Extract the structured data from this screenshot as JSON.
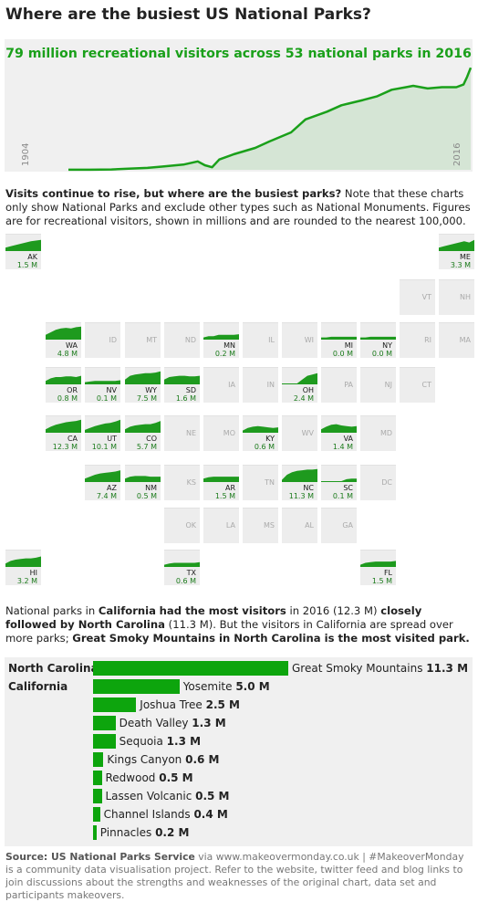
{
  "title": "Where are the busiest US National Parks?",
  "top": {
    "headline": "79 million recreational visitors across 53 national parks in 2016",
    "start_year": "1904",
    "end_year": "2016"
  },
  "intro": {
    "bold": "Visits continue to rise, but where are the busiest parks?",
    "rest": " Note that these charts only show National Parks and exclude other types such as National Monuments. Figures are for recreational visitors, shown in millions and are rounded to the nearest 100,000."
  },
  "para2": {
    "t1": "National parks in ",
    "b1": "California",
    "t2": " ",
    "b2": "had the most visitors",
    "t3": " in 2016 (12.3 M) ",
    "b3": "closely followed by North Carolina",
    "t4": " (11.3 M). But the visitors in California are spread over more parks; ",
    "b4": "Great Smoky Mountains in North Carolina is the most visited park."
  },
  "source": {
    "label": "Source: ",
    "org": "US National Parks Service",
    "rest": " via www.makeovermonday.co.uk | #MakeoverMonday is a community data visualisation project. Refer to the website, twitter feed and blog links to join discussions about the strengths and weaknesses of the original chart, data set and participants makeovers."
  },
  "colors": {
    "accent": "#1aa01a",
    "bar": "#0da50d",
    "panel": "#f0f0f0",
    "tile": "#ededed",
    "muted": "#aaaaaa"
  },
  "chart_data": [
    {
      "type": "area",
      "title": "79 million recreational visitors across 53 national parks in 2016",
      "x": [
        1904,
        1910,
        1916,
        1920,
        1926,
        1930,
        1936,
        1940,
        1942,
        1944,
        1946,
        1950,
        1956,
        1960,
        1966,
        1970,
        1976,
        1980,
        1986,
        1990,
        1994,
        1998,
        2000,
        2004,
        2008,
        2012,
        2014,
        2015,
        2016
      ],
      "y": [
        0.1,
        0.1,
        0.3,
        0.8,
        1.5,
        2.5,
        4.0,
        6.5,
        3.5,
        2.0,
        8.0,
        12.0,
        17.0,
        22.0,
        29.0,
        39.0,
        45.0,
        50.0,
        54.0,
        57.0,
        62.0,
        64.0,
        65.0,
        63.0,
        64.0,
        64.0,
        66.0,
        72.0,
        79.0
      ],
      "xlabel": "",
      "ylabel": "",
      "xlim": [
        1904,
        2016
      ],
      "ylim": [
        0,
        82
      ]
    },
    {
      "type": "tile-map",
      "states": [
        {
          "abbr": "AK",
          "value": "1.5 M",
          "col": 0,
          "row": 0,
          "spark": [
            0.2,
            0.3,
            0.4,
            0.5,
            0.6,
            0.7,
            0.75,
            0.8
          ]
        },
        {
          "abbr": "ME",
          "value": "3.3 M",
          "col": 11,
          "row": 0,
          "spark": [
            0.2,
            0.3,
            0.4,
            0.5,
            0.6,
            0.7,
            0.6,
            0.8
          ]
        },
        {
          "abbr": "VT",
          "value": "",
          "col": 10,
          "row": 1
        },
        {
          "abbr": "NH",
          "value": "",
          "col": 11,
          "row": 1
        },
        {
          "abbr": "WA",
          "value": "4.8 M",
          "col": 1,
          "row": 2,
          "spark": [
            0.3,
            0.5,
            0.7,
            0.8,
            0.85,
            0.8,
            0.9,
            0.95
          ]
        },
        {
          "abbr": "ID",
          "value": "",
          "col": 2,
          "row": 2
        },
        {
          "abbr": "MT",
          "value": "",
          "col": 3,
          "row": 2
        },
        {
          "abbr": "ND",
          "value": "",
          "col": 4,
          "row": 2
        },
        {
          "abbr": "MN",
          "value": "0.2 M",
          "col": 5,
          "row": 2,
          "spark": [
            0.1,
            0.2,
            0.2,
            0.3,
            0.3,
            0.3,
            0.3,
            0.35
          ]
        },
        {
          "abbr": "IL",
          "value": "",
          "col": 6,
          "row": 2
        },
        {
          "abbr": "WI",
          "value": "",
          "col": 7,
          "row": 2
        },
        {
          "abbr": "MI",
          "value": "0.0 M",
          "col": 8,
          "row": 2,
          "spark": [
            0.1,
            0.1,
            0.15,
            0.15,
            0.15,
            0.15,
            0.15,
            0.15
          ]
        },
        {
          "abbr": "NY",
          "value": "0.0 M",
          "col": 9,
          "row": 2,
          "spark": [
            0.1,
            0.1,
            0.15,
            0.15,
            0.15,
            0.15,
            0.15,
            0.15
          ]
        },
        {
          "abbr": "RI",
          "value": "",
          "col": 10,
          "row": 2
        },
        {
          "abbr": "MA",
          "value": "",
          "col": 11,
          "row": 2
        },
        {
          "abbr": "OR",
          "value": "0.8 M",
          "col": 1,
          "row": 3,
          "spark": [
            0.2,
            0.4,
            0.5,
            0.5,
            0.55,
            0.55,
            0.5,
            0.6
          ]
        },
        {
          "abbr": "NV",
          "value": "0.1 M",
          "col": 2,
          "row": 3,
          "spark": [
            0.1,
            0.15,
            0.2,
            0.2,
            0.2,
            0.2,
            0.2,
            0.25
          ]
        },
        {
          "abbr": "WY",
          "value": "7.5 M",
          "col": 3,
          "row": 3,
          "spark": [
            0.3,
            0.6,
            0.7,
            0.75,
            0.8,
            0.8,
            0.85,
            0.95
          ]
        },
        {
          "abbr": "SD",
          "value": "1.6 M",
          "col": 4,
          "row": 3,
          "spark": [
            0.3,
            0.5,
            0.55,
            0.6,
            0.6,
            0.55,
            0.55,
            0.6
          ]
        },
        {
          "abbr": "IA",
          "value": "",
          "col": 5,
          "row": 3
        },
        {
          "abbr": "IN",
          "value": "",
          "col": 6,
          "row": 3
        },
        {
          "abbr": "OH",
          "value": "2.4 M",
          "col": 7,
          "row": 3,
          "spark": [
            0,
            0,
            0,
            0,
            0.3,
            0.6,
            0.7,
            0.8
          ]
        },
        {
          "abbr": "PA",
          "value": "",
          "col": 8,
          "row": 3
        },
        {
          "abbr": "NJ",
          "value": "",
          "col": 9,
          "row": 3
        },
        {
          "abbr": "CT",
          "value": "",
          "col": 10,
          "row": 3
        },
        {
          "abbr": "CA",
          "value": "12.3 M",
          "col": 1,
          "row": 4,
          "spark": [
            0.2,
            0.4,
            0.55,
            0.65,
            0.75,
            0.8,
            0.85,
            0.95
          ]
        },
        {
          "abbr": "UT",
          "value": "10.1 M",
          "col": 2,
          "row": 4,
          "spark": [
            0.15,
            0.3,
            0.45,
            0.55,
            0.65,
            0.7,
            0.8,
            0.95
          ]
        },
        {
          "abbr": "CO",
          "value": "5.7 M",
          "col": 3,
          "row": 4,
          "spark": [
            0.2,
            0.4,
            0.5,
            0.55,
            0.6,
            0.6,
            0.7,
            0.85
          ]
        },
        {
          "abbr": "NE",
          "value": "",
          "col": 4,
          "row": 4
        },
        {
          "abbr": "MO",
          "value": "",
          "col": 5,
          "row": 4
        },
        {
          "abbr": "KY",
          "value": "0.6 M",
          "col": 6,
          "row": 4,
          "spark": [
            0.1,
            0.3,
            0.4,
            0.45,
            0.4,
            0.35,
            0.3,
            0.35
          ]
        },
        {
          "abbr": "WV",
          "value": "",
          "col": 7,
          "row": 4
        },
        {
          "abbr": "VA",
          "value": "1.4 M",
          "col": 8,
          "row": 4,
          "spark": [
            0.2,
            0.4,
            0.55,
            0.6,
            0.5,
            0.45,
            0.4,
            0.45
          ]
        },
        {
          "abbr": "MD",
          "value": "",
          "col": 9,
          "row": 4
        },
        {
          "abbr": "AZ",
          "value": "7.4 M",
          "col": 2,
          "row": 5,
          "spark": [
            0.2,
            0.35,
            0.5,
            0.6,
            0.65,
            0.7,
            0.75,
            0.85
          ]
        },
        {
          "abbr": "NM",
          "value": "0.5 M",
          "col": 3,
          "row": 5,
          "spark": [
            0.2,
            0.35,
            0.4,
            0.4,
            0.4,
            0.35,
            0.35,
            0.35
          ]
        },
        {
          "abbr": "KS",
          "value": "",
          "col": 4,
          "row": 5
        },
        {
          "abbr": "AR",
          "value": "1.5 M",
          "col": 5,
          "row": 5,
          "spark": [
            0.2,
            0.3,
            0.35,
            0.35,
            0.35,
            0.35,
            0.35,
            0.35
          ]
        },
        {
          "abbr": "TN",
          "value": "",
          "col": 6,
          "row": 5
        },
        {
          "abbr": "NC",
          "value": "11.3 M",
          "col": 7,
          "row": 5,
          "spark": [
            0.1,
            0.5,
            0.7,
            0.8,
            0.85,
            0.9,
            0.9,
            0.95
          ]
        },
        {
          "abbr": "SC",
          "value": "0.1 M",
          "col": 8,
          "row": 5,
          "spark": [
            0,
            0,
            0,
            0,
            0,
            0.15,
            0.2,
            0.2
          ]
        },
        {
          "abbr": "DC",
          "value": "",
          "col": 9,
          "row": 5
        },
        {
          "abbr": "OK",
          "value": "",
          "col": 4,
          "row": 6
        },
        {
          "abbr": "LA",
          "value": "",
          "col": 5,
          "row": 6
        },
        {
          "abbr": "MS",
          "value": "",
          "col": 6,
          "row": 6
        },
        {
          "abbr": "AL",
          "value": "",
          "col": 7,
          "row": 6
        },
        {
          "abbr": "GA",
          "value": "",
          "col": 8,
          "row": 6
        },
        {
          "abbr": "HI",
          "value": "3.2 M",
          "col": 0,
          "row": 7,
          "spark": [
            0.2,
            0.4,
            0.5,
            0.55,
            0.6,
            0.6,
            0.65,
            0.75
          ]
        },
        {
          "abbr": "TX",
          "value": "0.6 M",
          "col": 4,
          "row": 7,
          "spark": [
            0.1,
            0.2,
            0.25,
            0.25,
            0.25,
            0.25,
            0.25,
            0.3
          ]
        },
        {
          "abbr": "FL",
          "value": "1.5 M",
          "col": 9,
          "row": 7,
          "spark": [
            0.1,
            0.25,
            0.3,
            0.35,
            0.35,
            0.35,
            0.35,
            0.4
          ]
        }
      ]
    },
    {
      "type": "bar",
      "groups": [
        "North Carolina",
        "California"
      ],
      "categories": [
        "Great Smoky Mountains",
        "Yosemite",
        "Joshua Tree",
        "Death Valley",
        "Sequoia",
        "Kings Canyon",
        "Redwood",
        "Lassen Volcanic",
        "Channel Islands",
        "Pinnacles"
      ],
      "group_of": [
        "North Carolina",
        "California",
        "California",
        "California",
        "California",
        "California",
        "California",
        "California",
        "California",
        "California"
      ],
      "values": [
        11.3,
        5.0,
        2.5,
        1.3,
        1.3,
        0.6,
        0.5,
        0.5,
        0.4,
        0.2
      ],
      "value_labels": [
        "11.3 M",
        "5.0 M",
        "2.5 M",
        "1.3 M",
        "1.3 M",
        "0.6 M",
        "0.5 M",
        "0.5 M",
        "0.4 M",
        "0.2 M"
      ],
      "xlim": [
        0,
        11.3
      ]
    }
  ]
}
